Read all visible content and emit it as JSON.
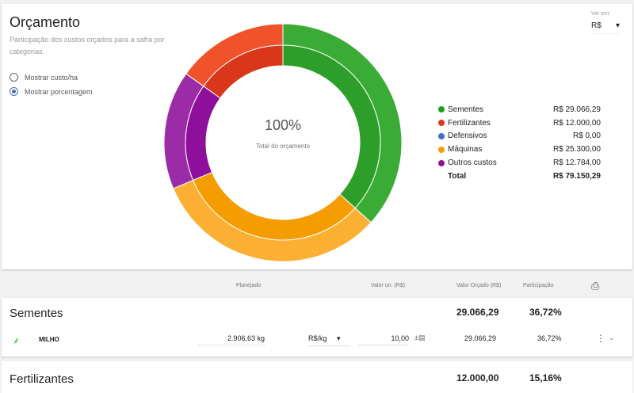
{
  "header": {
    "title": "Orçamento",
    "subtitle": "Participação dos custos orçados para a safra por categorias.",
    "options": [
      {
        "label": "Mostrar custo/ha",
        "selected": false
      },
      {
        "label": "Mostrar porcentagem",
        "selected": true
      }
    ],
    "view_label": "Ver em:",
    "view_value": "R$"
  },
  "center": {
    "value": "100%",
    "label": "Total do orçamento"
  },
  "chart_data": {
    "type": "pie",
    "categories": [
      "Sementes",
      "Máquinas",
      "Outros custos",
      "Fertilizantes"
    ],
    "values": [
      29066.29,
      25300.0,
      12784.0,
      12000.0
    ],
    "colors_inner": [
      "#2e9e2a",
      "#f59c00",
      "#8e0f9c",
      "#d9361a"
    ],
    "colors_outer": [
      "#3aab35",
      "#fbb033",
      "#9c2ba8",
      "#f0522b"
    ]
  },
  "legend": {
    "items": [
      {
        "name": "Sementes",
        "value": "R$ 29.066,29",
        "color": "#1e9e1e"
      },
      {
        "name": "Fertilizantes",
        "value": "R$ 12.000,00",
        "color": "#d9361a"
      },
      {
        "name": "Defensivos",
        "value": "R$ 0,00",
        "color": "#3f6fc4"
      },
      {
        "name": "Máquinas",
        "value": "R$ 25.300,00",
        "color": "#f59c00"
      },
      {
        "name": "Outros custos",
        "value": "R$ 12.784,00",
        "color": "#8e0f9c"
      }
    ],
    "total_label": "Total",
    "total_value": "R$ 79.150,29"
  },
  "table": {
    "headers": {
      "planned": "Planejado",
      "unit_value": "Valor un. (R$)",
      "budget": "Valor Orçado (R$)",
      "share": "Participação"
    },
    "sections": [
      {
        "name": "Sementes",
        "budget": "29.066,29",
        "share": "36,72%",
        "items": [
          {
            "name": "MILHO",
            "planned": "2.906,63 kg",
            "unit": "R$/kg",
            "unit_value": "10,00",
            "budget": "29.066,29",
            "share": "36,72%"
          }
        ]
      },
      {
        "name": "Fertilizantes",
        "budget": "12.000,00",
        "share": "15,16%"
      }
    ]
  }
}
